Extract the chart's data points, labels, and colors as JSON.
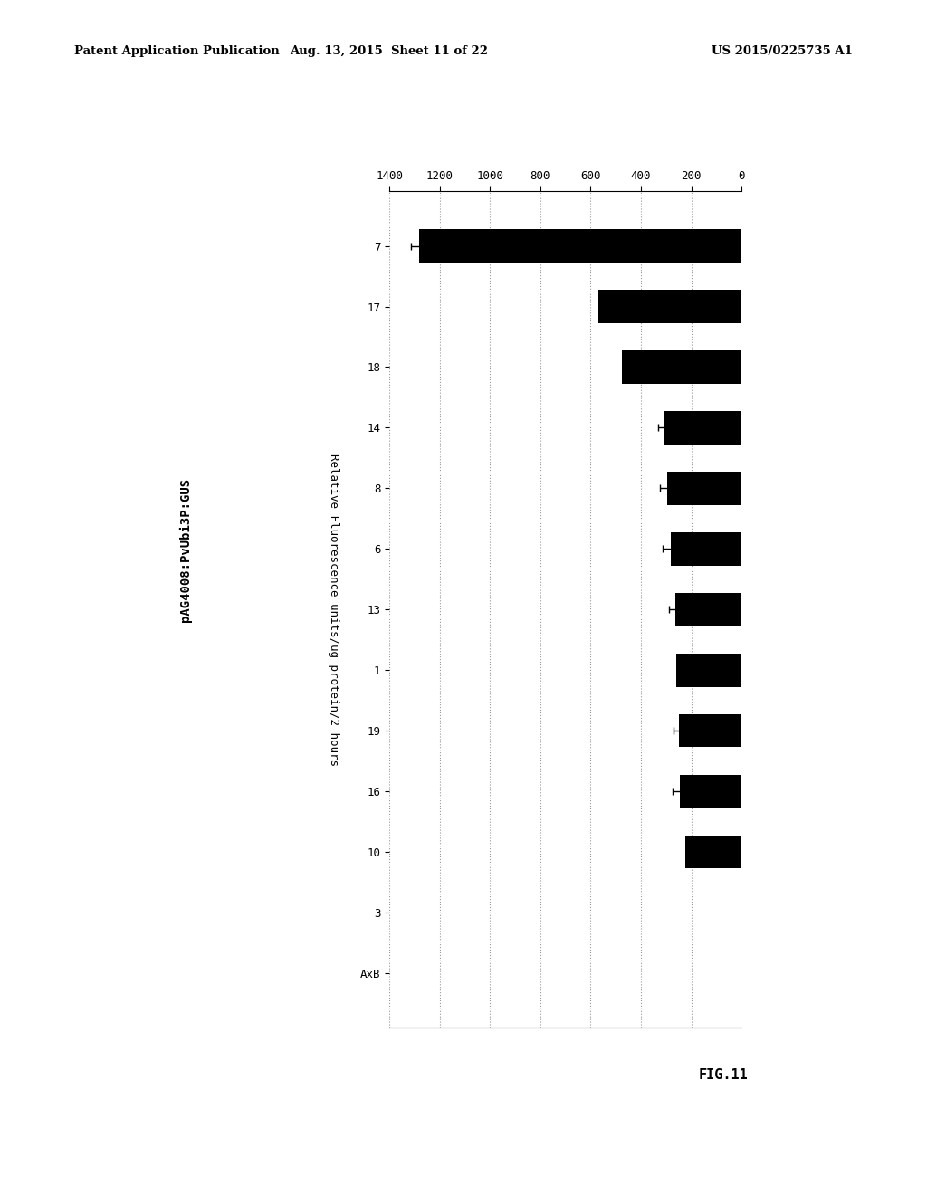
{
  "categories": [
    "7",
    "17",
    "18",
    "14",
    "8",
    "6",
    "13",
    "1",
    "19",
    "16",
    "10",
    "3",
    "AxB"
  ],
  "values": [
    1280,
    570,
    475,
    305,
    295,
    280,
    265,
    260,
    250,
    245,
    225,
    5,
    3
  ],
  "errors": [
    35,
    0,
    0,
    28,
    28,
    32,
    22,
    0,
    22,
    28,
    0,
    0,
    0
  ],
  "has_error": [
    true,
    false,
    false,
    true,
    true,
    true,
    true,
    false,
    true,
    true,
    false,
    false,
    false
  ],
  "bar_color": "#000000",
  "background_color": "#ffffff",
  "axis_label": "Relative Fluorescence units/ug protein/2 hours",
  "side_label": "pAG4008:PvUbi3P:GUS",
  "fig_label": "FIG.11",
  "header_left": "Patent Application Publication",
  "header_center": "Aug. 13, 2015  Sheet 11 of 22",
  "header_right": "US 2015/0225735 A1",
  "ylim": [
    0,
    1400
  ],
  "yticks": [
    0,
    200,
    400,
    600,
    800,
    1000,
    1200,
    1400
  ],
  "bar_width": 0.55
}
